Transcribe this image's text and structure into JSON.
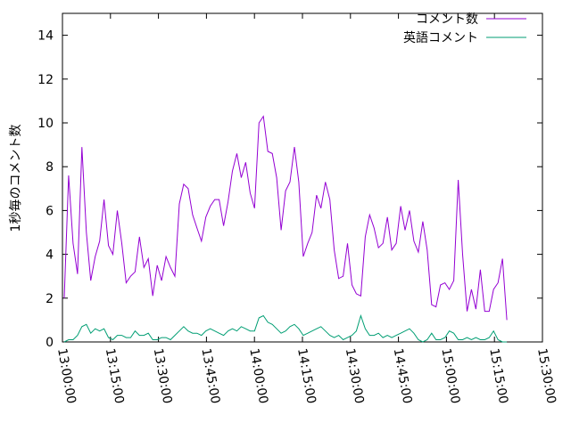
{
  "chart_data": {
    "type": "line",
    "y_label": "1秒毎のコメント数",
    "x": [
      "13:00:33",
      "13:01:56",
      "13:03:19",
      "13:04:42",
      "13:06:05",
      "13:07:28",
      "13:08:51",
      "13:10:14",
      "13:11:37",
      "13:13:00",
      "13:14:23",
      "13:15:46",
      "13:17:09",
      "13:18:32",
      "13:19:55",
      "13:21:18",
      "13:22:41",
      "13:24:04",
      "13:25:27",
      "13:26:50",
      "13:28:13",
      "13:29:36",
      "13:30:59",
      "13:32:22",
      "13:33:45",
      "13:35:08",
      "13:36:31",
      "13:37:54",
      "13:39:17",
      "13:40:40",
      "13:42:03",
      "13:43:26",
      "13:44:49",
      "13:46:12",
      "13:47:35",
      "13:48:58",
      "13:50:21",
      "13:51:44",
      "13:53:07",
      "13:54:30",
      "13:55:53",
      "13:57:16",
      "13:58:39",
      "14:00:02",
      "14:01:25",
      "14:02:48",
      "14:04:11",
      "14:05:34",
      "14:06:57",
      "14:08:20",
      "14:09:43",
      "14:11:06",
      "14:12:29",
      "14:13:52",
      "14:15:15",
      "14:16:38",
      "14:18:01",
      "14:19:24",
      "14:20:47",
      "14:22:10",
      "14:23:33",
      "14:24:56",
      "14:26:19",
      "14:27:42",
      "14:29:05",
      "14:30:28",
      "14:31:51",
      "14:33:14",
      "14:34:37",
      "14:36:00",
      "14:37:23",
      "14:38:46",
      "14:40:09",
      "14:41:32",
      "14:42:55",
      "14:44:18",
      "14:45:41",
      "14:47:04",
      "14:48:27",
      "14:49:50",
      "14:51:13",
      "14:52:36",
      "14:53:59",
      "14:55:22",
      "14:56:45",
      "14:58:08",
      "14:59:31",
      "15:00:54",
      "15:02:17",
      "15:03:40",
      "15:05:03",
      "15:06:26",
      "15:07:49",
      "15:09:12",
      "15:10:35",
      "15:11:58",
      "15:13:21",
      "15:14:44",
      "15:16:07",
      "15:17:30",
      "15:18:53"
    ],
    "series": [
      {
        "name": "コメント数",
        "color": "#9400d3",
        "values": [
          2.0,
          7.6,
          4.5,
          3.1,
          8.9,
          5.0,
          2.8,
          3.9,
          4.6,
          6.5,
          4.4,
          4.0,
          6.0,
          4.5,
          2.7,
          3.0,
          3.2,
          4.8,
          3.4,
          3.8,
          2.1,
          3.5,
          2.8,
          3.9,
          3.4,
          3.0,
          6.3,
          7.2,
          7.0,
          5.8,
          5.2,
          4.6,
          5.7,
          6.2,
          6.5,
          6.5,
          5.3,
          6.4,
          7.8,
          8.6,
          7.5,
          8.2,
          6.8,
          6.1,
          10.0,
          10.3,
          8.7,
          8.6,
          7.5,
          5.1,
          6.9,
          7.3,
          8.9,
          7.3,
          3.9,
          4.5,
          5.0,
          6.7,
          6.1,
          7.3,
          6.5,
          4.2,
          2.9,
          3.0,
          4.5,
          2.6,
          2.2,
          2.1,
          4.8,
          5.8,
          5.2,
          4.3,
          4.5,
          5.7,
          4.2,
          4.5,
          6.2,
          5.1,
          6.0,
          4.6,
          4.1,
          5.5,
          4.2,
          1.7,
          1.6,
          2.6,
          2.7,
          2.4,
          2.8,
          7.4,
          4.0,
          1.4,
          2.4,
          1.5,
          3.3,
          1.4,
          1.4,
          2.4,
          2.7,
          3.8,
          1.0
        ]
      },
      {
        "name": "英語コメント",
        "color": "#009e73",
        "values": [
          0.0,
          0.1,
          0.1,
          0.3,
          0.7,
          0.8,
          0.4,
          0.6,
          0.5,
          0.6,
          0.2,
          0.1,
          0.3,
          0.3,
          0.2,
          0.2,
          0.5,
          0.3,
          0.3,
          0.4,
          0.1,
          0.1,
          0.2,
          0.2,
          0.1,
          0.3,
          0.5,
          0.7,
          0.5,
          0.4,
          0.4,
          0.3,
          0.5,
          0.6,
          0.5,
          0.4,
          0.3,
          0.5,
          0.6,
          0.5,
          0.7,
          0.6,
          0.5,
          0.5,
          1.1,
          1.2,
          0.9,
          0.8,
          0.6,
          0.4,
          0.5,
          0.7,
          0.8,
          0.6,
          0.3,
          0.4,
          0.5,
          0.6,
          0.7,
          0.5,
          0.3,
          0.2,
          0.3,
          0.1,
          0.2,
          0.3,
          0.5,
          1.2,
          0.6,
          0.3,
          0.3,
          0.4,
          0.2,
          0.3,
          0.2,
          0.3,
          0.4,
          0.5,
          0.6,
          0.4,
          0.1,
          0.0,
          0.1,
          0.4,
          0.1,
          0.1,
          0.2,
          0.5,
          0.4,
          0.1,
          0.1,
          0.2,
          0.1,
          0.2,
          0.1,
          0.1,
          0.2,
          0.5,
          0.1,
          0.0,
          0.0
        ]
      }
    ],
    "xlim": [
      "13:00:00",
      "15:30:00"
    ],
    "xticks": [
      "13:00:00",
      "13:15:00",
      "13:30:00",
      "13:45:00",
      "14:00:00",
      "14:15:00",
      "14:30:00",
      "14:45:00",
      "15:00:00",
      "15:15:00",
      "15:30:00"
    ],
    "ylim": [
      0,
      15
    ],
    "yticks": [
      0,
      2,
      4,
      6,
      8,
      10,
      12,
      14
    ],
    "legend": "top-right"
  }
}
